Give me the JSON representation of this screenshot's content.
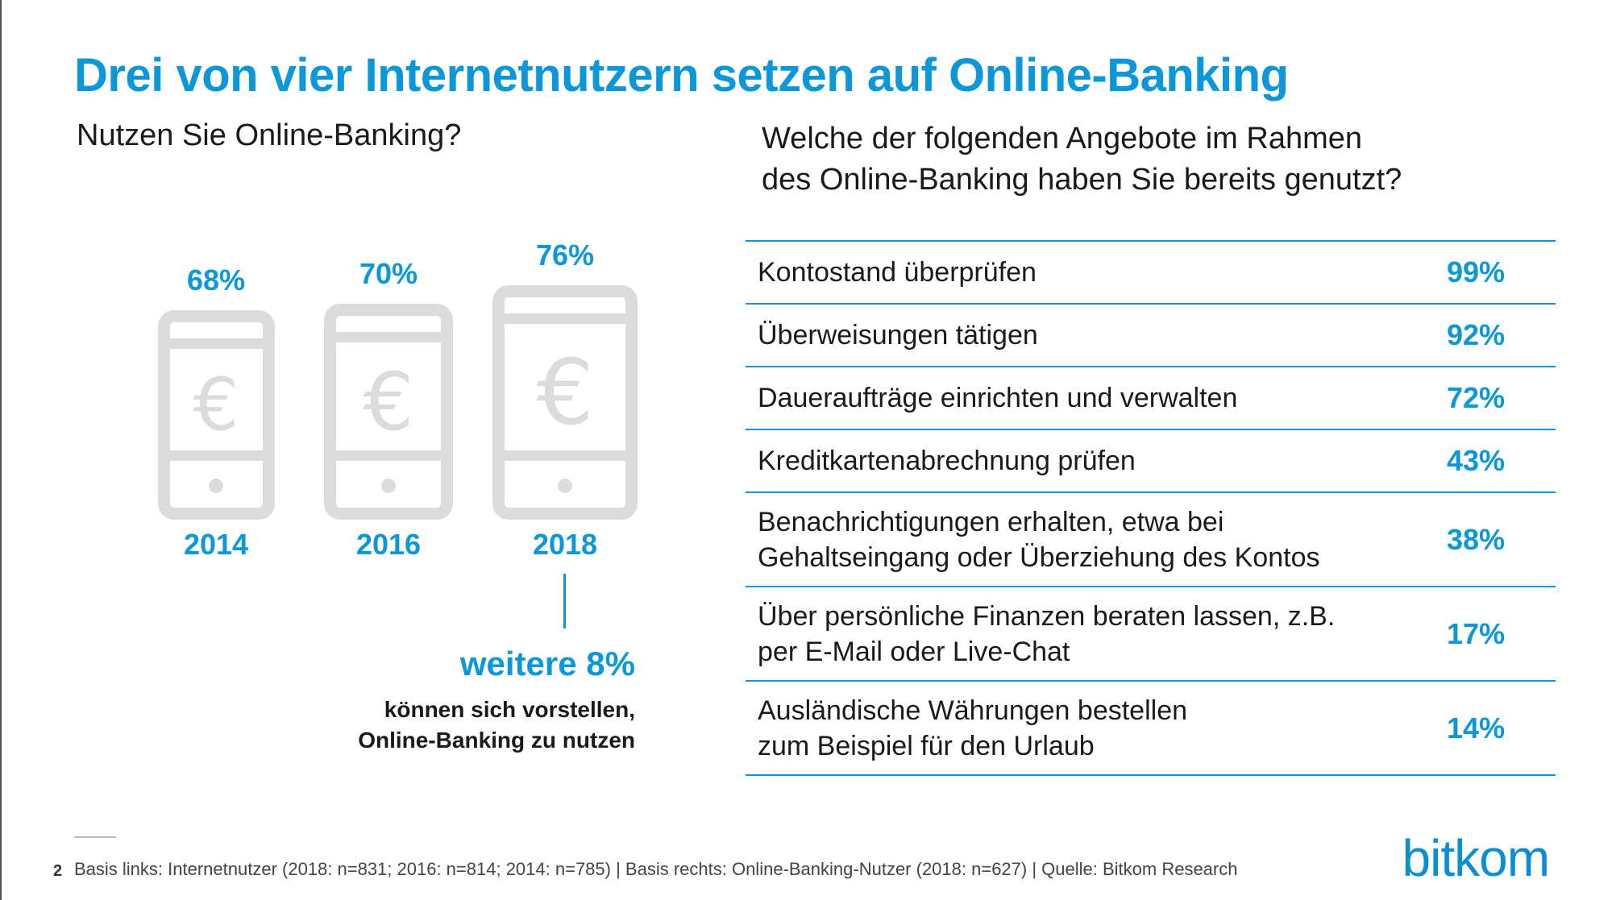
{
  "title": "Drei von vier Internetnutzern setzen auf Online-Banking",
  "left_question": "Nutzen Sie Online-Banking?",
  "right_question": {
    "line1": "Welche der folgenden Angebote im Rahmen",
    "line2": "des Online-Banking haben Sie bereits genutzt?"
  },
  "icons": {
    "phone": "smartphone-icon",
    "currency": "euro-icon"
  },
  "symbols": {
    "euro": "€"
  },
  "colors": {
    "accent": "#0b97d9",
    "phone_gray": "#dcdcdc"
  },
  "note": {
    "percent": "weitere 8%",
    "line1": "können sich vorstellen,",
    "line2": "Online-Banking zu nutzen"
  },
  "footnote": {
    "page": "2",
    "text": "Basis links: Internetnutzer (2018: n=831; 2016: n=814; 2014: n=785) | Basis rechts: Online-Banking-Nutzer (2018: n=627) | Quelle: Bitkom Research"
  },
  "logo": "bitkom",
  "chart_data": [
    {
      "type": "bar",
      "title": "Nutzen Sie Online-Banking?",
      "categories": [
        "2014",
        "2016",
        "2018"
      ],
      "values": [
        68,
        70,
        76
      ],
      "labels": [
        "68%",
        "70%",
        "76%"
      ],
      "unit": "%"
    },
    {
      "type": "table",
      "title": "Welche der folgenden Angebote im Rahmen des Online-Banking haben Sie bereits genutzt?",
      "rows": [
        {
          "lines": [
            "Kontostand überprüfen"
          ],
          "value": 99,
          "label": "99%"
        },
        {
          "lines": [
            "Überweisungen tätigen"
          ],
          "value": 92,
          "label": "92%"
        },
        {
          "lines": [
            "Daueraufträge einrichten und verwalten"
          ],
          "value": 72,
          "label": "72%"
        },
        {
          "lines": [
            "Kreditkartenabrechnung prüfen"
          ],
          "value": 43,
          "label": "43%"
        },
        {
          "lines": [
            "Benachrichtigungen erhalten, etwa bei",
            "Gehaltseingang oder Überziehung des Kontos"
          ],
          "value": 38,
          "label": "38%"
        },
        {
          "lines": [
            "Über persönliche Finanzen beraten lassen, z.B.",
            "per E-Mail oder Live-Chat"
          ],
          "value": 17,
          "label": "17%"
        },
        {
          "lines": [
            "Ausländische Währungen bestellen",
            "zum Beispiel für den Urlaub"
          ],
          "value": 14,
          "label": "14%"
        }
      ]
    }
  ]
}
